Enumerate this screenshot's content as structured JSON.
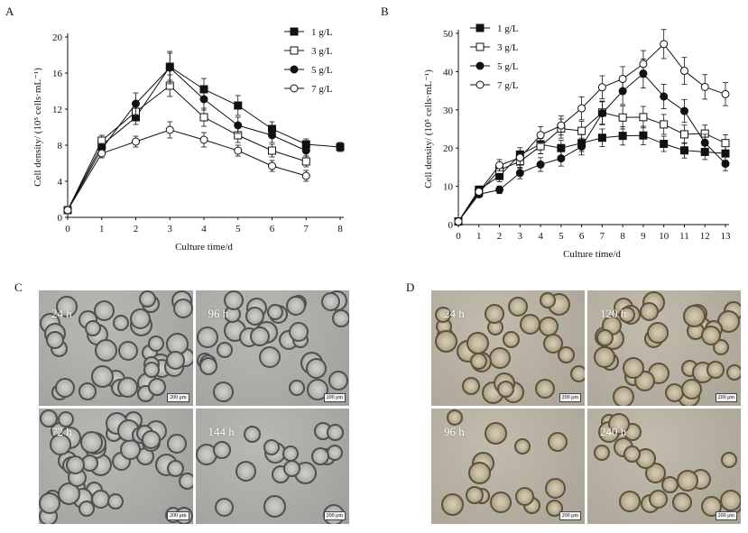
{
  "chart_data": [
    {
      "panel": "A",
      "type": "line",
      "ylabel": "Cell density/ (10⁵ cells·mL⁻¹)",
      "xlabel": "Culture time/d",
      "ylim": [
        0,
        20
      ],
      "xlim": [
        0,
        8
      ],
      "xticks": [
        "0",
        "1",
        "2",
        "3",
        "4",
        "5",
        "6",
        "7",
        "8"
      ],
      "yticks": [
        "0",
        "4",
        "8",
        "12",
        "16",
        "20"
      ],
      "legend_position": "top-right",
      "series": [
        {
          "name": "1 g/L",
          "marker": "square-filled",
          "x": [
            0,
            1,
            2,
            3,
            4,
            5,
            6,
            7,
            8
          ],
          "y": [
            0.8,
            8.0,
            11.1,
            16.7,
            14.2,
            12.4,
            9.8,
            8.1,
            7.8
          ],
          "err": [
            0.2,
            0.6,
            0.8,
            1.5,
            1.2,
            1.1,
            0.8,
            0.6,
            0.5
          ]
        },
        {
          "name": "3 g/L",
          "marker": "square-open",
          "x": [
            0,
            1,
            2,
            3,
            4,
            5,
            6,
            7
          ],
          "y": [
            0.8,
            8.5,
            11.7,
            14.6,
            11.1,
            9.1,
            7.4,
            6.2
          ],
          "err": [
            0.2,
            0.6,
            0.8,
            1.2,
            1.0,
            0.8,
            0.7,
            0.6
          ]
        },
        {
          "name": "5 g/L",
          "marker": "circle-filled",
          "x": [
            0,
            1,
            2,
            3,
            4,
            5,
            6,
            7
          ],
          "y": [
            0.8,
            7.6,
            12.6,
            16.6,
            13.1,
            10.2,
            9.1,
            7.4
          ],
          "err": [
            0.2,
            0.6,
            1.2,
            1.8,
            1.2,
            0.9,
            0.8,
            0.6
          ]
        },
        {
          "name": "7 g/L",
          "marker": "circle-open",
          "x": [
            0,
            1,
            2,
            3,
            4,
            5,
            6,
            7
          ],
          "y": [
            0.8,
            7.1,
            8.4,
            9.7,
            8.6,
            7.4,
            5.7,
            4.6
          ],
          "err": [
            0.2,
            0.5,
            0.6,
            0.9,
            0.8,
            0.6,
            0.6,
            0.6
          ]
        }
      ]
    },
    {
      "panel": "B",
      "type": "line",
      "ylabel": "Cell density/ (10⁵ cells·mL⁻¹)",
      "xlabel": "Culture time/d",
      "ylim": [
        0,
        50
      ],
      "xlim": [
        0,
        13
      ],
      "xticks": [
        "0",
        "1",
        "2",
        "3",
        "4",
        "5",
        "6",
        "7",
        "8",
        "9",
        "10",
        "11",
        "12",
        "13"
      ],
      "yticks": [
        "0",
        "10",
        "20",
        "30",
        "40",
        "50"
      ],
      "legend_position": "top-left",
      "series": [
        {
          "name": "1 g/L",
          "marker": "square-filled",
          "x": [
            0,
            1,
            2,
            3,
            4,
            5,
            6,
            7,
            8,
            9,
            10,
            11,
            12,
            13
          ],
          "y": [
            0.8,
            9.1,
            12.7,
            18.3,
            21.0,
            20.0,
            21.3,
            22.7,
            23.2,
            23.3,
            21.1,
            19.4,
            19.0,
            18.6
          ],
          "err": [
            0.3,
            1.0,
            1.5,
            1.8,
            2.5,
            2.0,
            2.2,
            2.3,
            2.4,
            2.4,
            2.0,
            2.0,
            2.0,
            1.8
          ]
        },
        {
          "name": "3 g/L",
          "marker": "square-open",
          "x": [
            0,
            1,
            2,
            3,
            4,
            5,
            6,
            7,
            8,
            9,
            10,
            11,
            12,
            13
          ],
          "y": [
            0.8,
            8.3,
            14.3,
            16.5,
            20.5,
            25.1,
            24.5,
            29.3,
            28.0,
            28.1,
            26.2,
            23.6,
            23.8,
            21.3
          ],
          "err": [
            0.3,
            1.0,
            1.5,
            1.8,
            2.0,
            2.5,
            2.5,
            3.0,
            3.0,
            2.8,
            2.6,
            2.4,
            2.2,
            2.2
          ]
        },
        {
          "name": "5 g/L",
          "marker": "circle-filled",
          "x": [
            0,
            1,
            2,
            3,
            4,
            5,
            6,
            7,
            8,
            9,
            10,
            11,
            12,
            13
          ],
          "y": [
            0.8,
            7.9,
            9.1,
            13.5,
            15.7,
            17.3,
            20.4,
            29.1,
            34.9,
            39.5,
            33.5,
            29.7,
            21.4,
            15.9
          ],
          "err": [
            0.3,
            0.8,
            1.0,
            1.5,
            1.8,
            2.0,
            2.2,
            3.0,
            3.5,
            3.8,
            3.2,
            3.0,
            2.2,
            1.8
          ]
        },
        {
          "name": "7 g/L",
          "marker": "circle-open",
          "x": [
            0,
            1,
            2,
            3,
            4,
            5,
            6,
            7,
            8,
            9,
            10,
            11,
            12,
            13
          ],
          "y": [
            0.8,
            8.6,
            15.5,
            17.5,
            23.4,
            25.9,
            30.4,
            35.9,
            38.1,
            42.0,
            47.2,
            40.2,
            36.0,
            34.1
          ],
          "err": [
            0.3,
            1.0,
            1.5,
            1.8,
            2.2,
            2.5,
            3.0,
            3.0,
            3.2,
            3.5,
            3.8,
            3.5,
            3.2,
            3.0
          ]
        }
      ]
    }
  ],
  "panels": {
    "a": {
      "letter": "A"
    },
    "b": {
      "letter": "B"
    },
    "c": {
      "letter": "C",
      "images": [
        {
          "time": "24 h",
          "scale": "200 μm"
        },
        {
          "time": "96 h",
          "scale": "200 μm"
        },
        {
          "time": "72 h",
          "scale": "200 μm"
        },
        {
          "time": "144 h",
          "scale": "200 μm"
        }
      ]
    },
    "d": {
      "letter": "D",
      "images": [
        {
          "time": "24 h",
          "scale": "200 μm"
        },
        {
          "time": "120 h",
          "scale": "200 μm"
        },
        {
          "time": "96 h",
          "scale": "200 μm"
        },
        {
          "time": "240 h",
          "scale": "200 μm"
        }
      ]
    }
  },
  "colors": {
    "ink": "#111111",
    "micro_gray": "#a9a9a6",
    "micro_tan": "#b3ad9f"
  }
}
